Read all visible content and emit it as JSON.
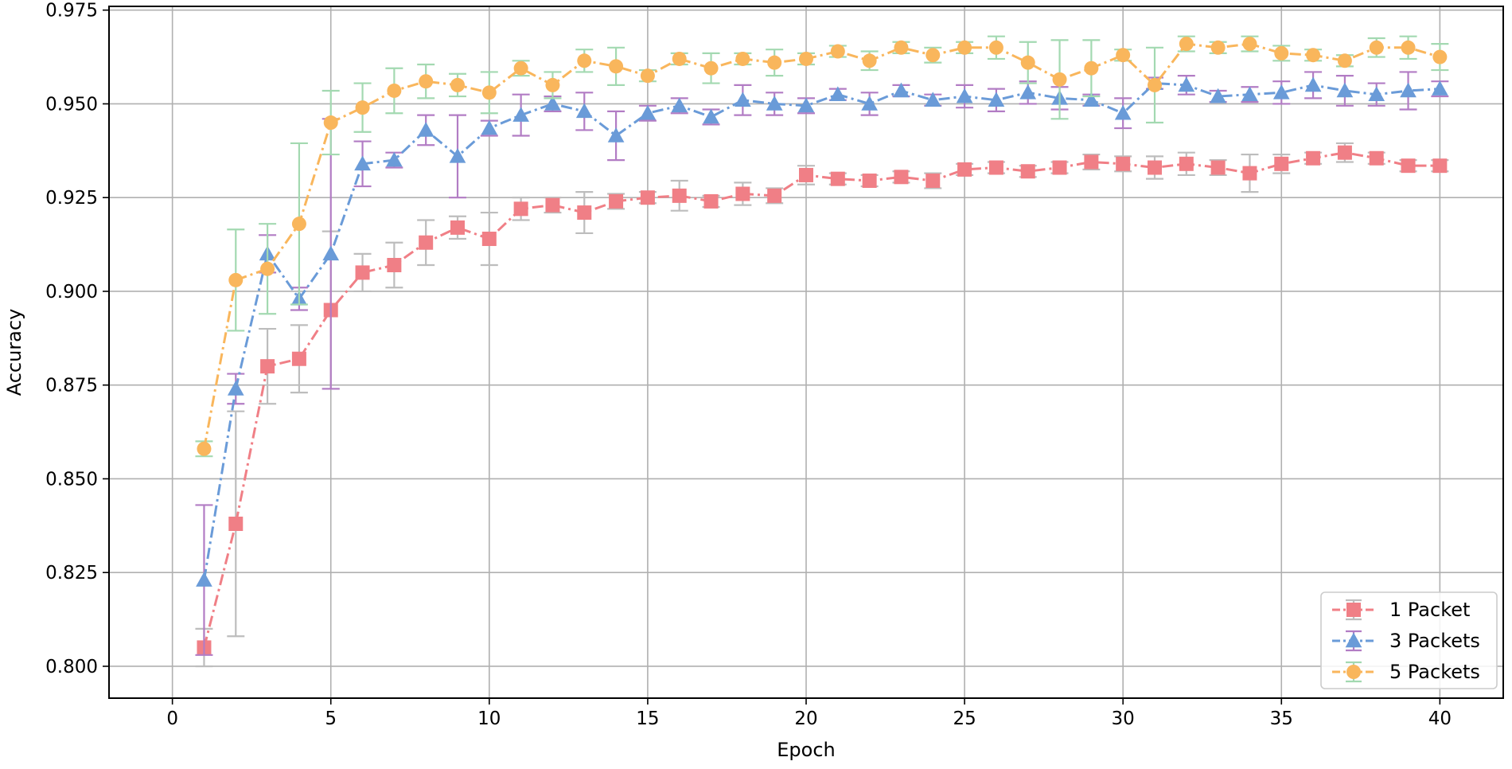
{
  "chart_data": {
    "type": "line",
    "title": "",
    "xlabel": "Epoch",
    "ylabel": "Accuracy",
    "xlim": [
      -2,
      42
    ],
    "ylim": [
      0.7915,
      0.976
    ],
    "xticks": [
      0,
      5,
      10,
      15,
      20,
      25,
      30,
      35,
      40
    ],
    "xtick_labels": [
      "0",
      "5",
      "10",
      "15",
      "20",
      "25",
      "30",
      "35",
      "40"
    ],
    "yticks": [
      0.8,
      0.825,
      0.85,
      0.875,
      0.9,
      0.925,
      0.95,
      0.975
    ],
    "ytick_labels": [
      "0.800",
      "0.825",
      "0.850",
      "0.875",
      "0.900",
      "0.925",
      "0.950",
      "0.975"
    ],
    "grid": true,
    "legend_position": "bottom-right",
    "x": [
      1,
      2,
      3,
      4,
      5,
      6,
      7,
      8,
      9,
      10,
      11,
      12,
      13,
      14,
      15,
      16,
      17,
      18,
      19,
      20,
      21,
      22,
      23,
      24,
      25,
      26,
      27,
      28,
      29,
      30,
      31,
      32,
      33,
      34,
      35,
      36,
      37,
      38,
      39,
      40
    ],
    "series": [
      {
        "name": "1 Packet",
        "color": "#f07f86",
        "errorbar_color": "#bdbdbd",
        "marker": "square",
        "values": [
          0.805,
          0.838,
          0.88,
          0.882,
          0.895,
          0.905,
          0.907,
          0.913,
          0.917,
          0.914,
          0.922,
          0.923,
          0.921,
          0.924,
          0.925,
          0.9255,
          0.924,
          0.926,
          0.9255,
          0.931,
          0.93,
          0.9295,
          0.9305,
          0.9295,
          0.9325,
          0.933,
          0.932,
          0.933,
          0.9345,
          0.934,
          0.933,
          0.934,
          0.933,
          0.9315,
          0.934,
          0.9355,
          0.937,
          0.9355,
          0.9335,
          0.9335
        ],
        "errors": [
          0.005,
          0.03,
          0.01,
          0.009,
          0.021,
          0.005,
          0.006,
          0.006,
          0.003,
          0.007,
          0.003,
          0.002,
          0.0055,
          0.002,
          0.0015,
          0.004,
          0.0015,
          0.003,
          0.002,
          0.0025,
          0.0015,
          0.0015,
          0.0015,
          0.002,
          0.0015,
          0.0015,
          0.0015,
          0.0015,
          0.002,
          0.002,
          0.003,
          0.003,
          0.002,
          0.005,
          0.0025,
          0.0015,
          0.0025,
          0.0015,
          0.0015,
          0.0015
        ]
      },
      {
        "name": "3 Packets",
        "color": "#6a9bd8",
        "errorbar_color": "#b27cc4",
        "marker": "triangle",
        "values": [
          0.823,
          0.874,
          0.91,
          0.898,
          0.91,
          0.934,
          0.935,
          0.943,
          0.936,
          0.9435,
          0.947,
          0.95,
          0.948,
          0.9415,
          0.9475,
          0.9495,
          0.9465,
          0.951,
          0.95,
          0.9495,
          0.9525,
          0.95,
          0.9535,
          0.951,
          0.952,
          0.951,
          0.953,
          0.9515,
          0.951,
          0.9475,
          0.9555,
          0.955,
          0.952,
          0.9525,
          0.953,
          0.955,
          0.9535,
          0.9525,
          0.9535,
          0.954
        ],
        "errors": [
          0.02,
          0.004,
          0.005,
          0.003,
          0.036,
          0.006,
          0.002,
          0.004,
          0.011,
          0.002,
          0.0055,
          0.002,
          0.005,
          0.0065,
          0.002,
          0.002,
          0.002,
          0.004,
          0.003,
          0.002,
          0.0015,
          0.003,
          0.0015,
          0.0015,
          0.003,
          0.003,
          0.003,
          0.003,
          0.0015,
          0.004,
          0.0015,
          0.0025,
          0.0015,
          0.002,
          0.003,
          0.0035,
          0.004,
          0.003,
          0.005,
          0.002
        ]
      },
      {
        "name": "5 Packets",
        "color": "#f9b65c",
        "errorbar_color": "#a3d9b1",
        "marker": "circle",
        "values": [
          0.858,
          0.903,
          0.906,
          0.918,
          0.945,
          0.949,
          0.9535,
          0.956,
          0.955,
          0.953,
          0.9595,
          0.955,
          0.9615,
          0.96,
          0.9575,
          0.962,
          0.9595,
          0.962,
          0.961,
          0.962,
          0.964,
          0.9615,
          0.965,
          0.963,
          0.965,
          0.965,
          0.961,
          0.9565,
          0.9595,
          0.963,
          0.955,
          0.966,
          0.965,
          0.966,
          0.9635,
          0.963,
          0.9615,
          0.965,
          0.965,
          0.9625
        ],
        "errors": [
          0.002,
          0.0135,
          0.012,
          0.0215,
          0.0085,
          0.0065,
          0.006,
          0.0045,
          0.003,
          0.0055,
          0.002,
          0.0035,
          0.003,
          0.005,
          0.0015,
          0.0015,
          0.004,
          0.0015,
          0.0035,
          0.0015,
          0.0015,
          0.0025,
          0.0015,
          0.002,
          0.0015,
          0.003,
          0.0055,
          0.0105,
          0.0075,
          0.0015,
          0.01,
          0.002,
          0.0015,
          0.002,
          0.002,
          0.0015,
          0.0015,
          0.0025,
          0.003,
          0.0035
        ]
      }
    ]
  }
}
